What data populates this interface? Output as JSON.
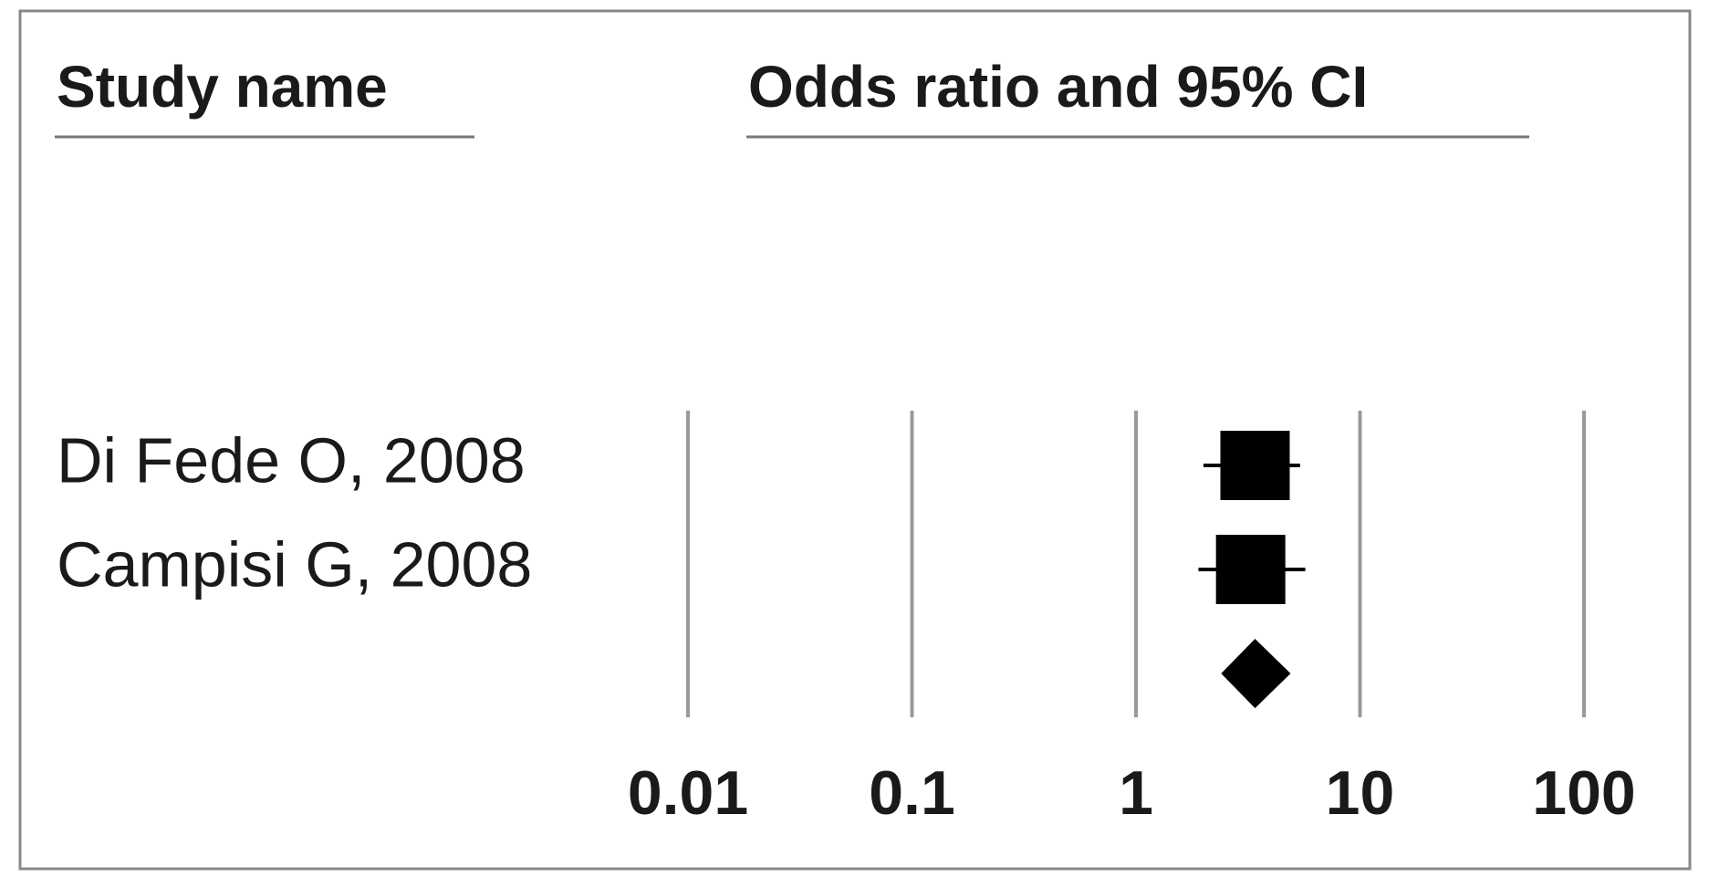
{
  "chart_data": {
    "type": "forest",
    "column_headers": [
      "Study name",
      "Odds ratio and 95% CI"
    ],
    "categories": [
      "Di Fede O, 2008",
      "Campisi G, 2008",
      null
    ],
    "values": [
      3.4,
      3.25,
      3.4
    ],
    "lower": [
      2.0,
      1.9,
      2.4
    ],
    "upper": [
      5.4,
      5.7,
      4.9
    ],
    "color": "#000000",
    "log_x": true,
    "xlim": [
      0.01,
      100
    ],
    "xticks": [
      0.01,
      0.1,
      1,
      10,
      100
    ],
    "grid": true
  }
}
